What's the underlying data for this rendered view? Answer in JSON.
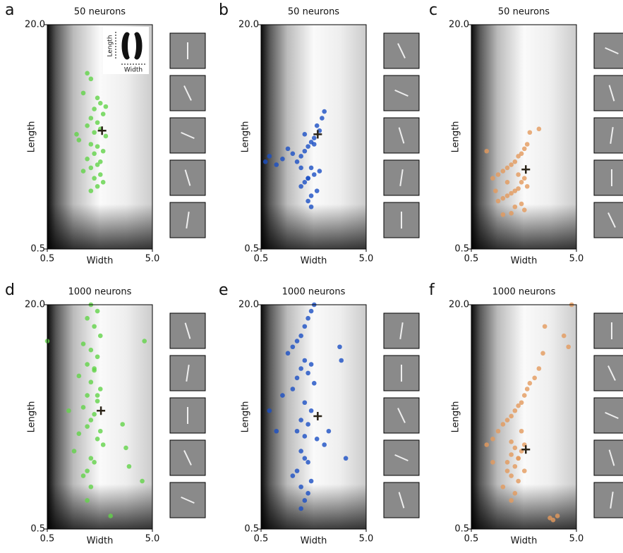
{
  "chart_data": [
    {
      "type": "scatter",
      "panel": "a",
      "title": "50 neurons",
      "x_label": "Width",
      "y_label": "Length",
      "inset_labels": [
        "Length",
        "Width"
      ],
      "log_x": true,
      "log_y": true,
      "xlim": [
        0.5,
        5.0
      ],
      "ylim": [
        0.5,
        20.0
      ],
      "xticks": [
        0.5,
        {
          "value": 5.0,
          "label": "5.0"
        }
      ],
      "yticks": [
        0.5,
        {
          "value": 20.0,
          "label": "20.0"
        }
      ],
      "series": [
        {
          "color": "#62d348",
          "x": [
            1.2,
            1.3,
            1.1,
            1.5,
            1.6,
            1.4,
            1.7,
            1.3,
            1.5,
            1.2,
            1.6,
            1.4,
            1.8,
            1.0,
            1.3,
            1.5,
            1.7,
            1.4,
            1.2,
            1.6,
            1.5,
            1.3,
            1.1,
            1.6,
            1.4,
            1.7,
            1.5,
            1.3,
            1.8,
            0.95
          ],
          "y": [
            9.0,
            8.2,
            6.5,
            6.0,
            5.5,
            5.0,
            4.6,
            4.3,
            4.0,
            3.8,
            3.6,
            3.4,
            3.2,
            3.0,
            2.8,
            2.7,
            2.5,
            2.4,
            2.2,
            2.1,
            2.0,
            1.9,
            1.8,
            1.7,
            1.6,
            1.5,
            1.4,
            1.3,
            5.2,
            3.3
          ]
        }
      ],
      "mean": {
        "x": 1.66,
        "y": 3.5
      }
    },
    {
      "type": "scatter",
      "panel": "b",
      "title": "50 neurons",
      "x_label": "Width",
      "y_label": "Length",
      "log_x": true,
      "log_y": true,
      "xlim": [
        0.5,
        5.0
      ],
      "ylim": [
        0.5,
        20.0
      ],
      "xticks": [
        0.5,
        {
          "value": 5.0,
          "label": "5.0"
        }
      ],
      "yticks": [
        0.5,
        {
          "value": 20.0,
          "label": "20.0"
        }
      ],
      "series": [
        {
          "color": "#1a4fc4",
          "x": [
            2.0,
            1.9,
            1.7,
            1.8,
            1.6,
            1.5,
            1.4,
            1.3,
            1.2,
            1.1,
            1.0,
            0.9,
            0.8,
            0.7,
            0.6,
            0.55,
            1.5,
            1.6,
            1.4,
            1.3,
            1.2,
            1.7,
            1.8,
            1.5,
            1.4,
            1.6,
            1.3,
            1.2,
            1.5,
            1.4
          ],
          "y": [
            4.8,
            4.3,
            3.8,
            3.5,
            3.1,
            2.9,
            2.7,
            2.5,
            2.3,
            2.1,
            2.4,
            2.6,
            2.2,
            2.0,
            2.3,
            2.1,
            1.9,
            1.7,
            1.6,
            1.5,
            1.4,
            1.3,
            1.8,
            1.2,
            1.1,
            2.8,
            3.3,
            1.9,
            1.0,
            1.6
          ]
        }
      ],
      "mean": {
        "x": 1.73,
        "y": 3.3
      }
    },
    {
      "type": "scatter",
      "panel": "c",
      "title": "50 neurons",
      "x_label": "Width",
      "y_label": "Length",
      "log_x": true,
      "log_y": true,
      "xlim": [
        0.5,
        5.0
      ],
      "ylim": [
        0.5,
        20.0
      ],
      "xticks": [
        0.5,
        {
          "value": 5.0,
          "label": "5.0"
        }
      ],
      "yticks": [
        0.5,
        {
          "value": 20.0,
          "label": "20.0"
        }
      ],
      "series": [
        {
          "color": "#e39a5c",
          "x": [
            2.2,
            1.8,
            1.7,
            1.6,
            0.7,
            1.5,
            1.4,
            1.3,
            1.2,
            1.1,
            1.0,
            0.9,
            0.8,
            1.6,
            1.5,
            1.7,
            1.4,
            1.3,
            1.2,
            1.1,
            1.0,
            0.9,
            1.5,
            1.3,
            1.6,
            1.2,
            1.4,
            1.1,
            0.85,
            1.0
          ],
          "y": [
            3.6,
            3.4,
            2.8,
            2.6,
            2.5,
            2.4,
            2.3,
            2.1,
            2.0,
            1.9,
            1.8,
            1.7,
            1.6,
            1.6,
            1.5,
            1.4,
            1.35,
            1.3,
            1.25,
            1.2,
            1.15,
            1.1,
            1.05,
            1.0,
            0.95,
            0.9,
            1.7,
            1.5,
            1.3,
            0.88
          ]
        }
      ],
      "mean": {
        "x": 1.65,
        "y": 1.85
      }
    },
    {
      "type": "scatter",
      "panel": "d",
      "title": "1000 neurons",
      "x_label": "Width",
      "y_label": "Length",
      "log_x": true,
      "log_y": true,
      "xlim": [
        0.5,
        5.0
      ],
      "ylim": [
        0.5,
        20.0
      ],
      "xticks": [
        0.5,
        {
          "value": 5.0,
          "label": "5.0"
        }
      ],
      "yticks": [
        0.5,
        {
          "value": 20.0,
          "label": "20.0"
        }
      ],
      "series": [
        {
          "color": "#62d348",
          "x": [
            0.5,
            4.2,
            4.0,
            2.0,
            1.3,
            1.5,
            1.2,
            1.4,
            1.6,
            1.1,
            1.3,
            1.5,
            1.2,
            1.4,
            1.0,
            1.3,
            1.6,
            1.2,
            1.5,
            1.1,
            1.4,
            1.3,
            1.2,
            1.0,
            1.5,
            1.7,
            0.9,
            1.3,
            1.4,
            1.2,
            2.6,
            2.8,
            3.0,
            0.8,
            1.1,
            1.6,
            1.3,
            1.2,
            1.5,
            1.4
          ],
          "y": [
            11.0,
            11.0,
            1.1,
            0.62,
            20,
            18,
            16,
            14,
            12,
            10.5,
            9.5,
            8.5,
            7.5,
            6.8,
            6.2,
            5.6,
            5.0,
            4.5,
            4.1,
            3.7,
            3.3,
            3.0,
            2.7,
            2.4,
            2.2,
            2.0,
            1.8,
            1.6,
            1.5,
            1.3,
            2.8,
            1.9,
            1.4,
            3.5,
            1.2,
            2.5,
            1.0,
            0.8,
            4.5,
            7.0
          ]
        }
      ],
      "mean": {
        "x": 1.62,
        "y": 3.5
      }
    },
    {
      "type": "scatter",
      "panel": "e",
      "title": "1000 neurons",
      "x_label": "Width",
      "y_label": "Length",
      "log_x": true,
      "log_y": true,
      "xlim": [
        0.5,
        5.0
      ],
      "ylim": [
        0.5,
        20.0
      ],
      "xticks": [
        0.5,
        {
          "value": 5.0,
          "label": "5.0"
        }
      ],
      "yticks": [
        0.5,
        {
          "value": 20.0,
          "label": "20.0"
        }
      ],
      "series": [
        {
          "color": "#1a4fc4",
          "x": [
            2.9,
            2.8,
            1.6,
            1.5,
            1.4,
            1.3,
            1.2,
            1.1,
            1.0,
            0.9,
            1.3,
            1.5,
            1.2,
            1.4,
            1.1,
            1.6,
            1.0,
            0.8,
            0.6,
            1.3,
            1.5,
            1.2,
            1.4,
            1.1,
            1.3,
            1.7,
            2.2,
            2.0,
            1.2,
            1.3,
            1.4,
            1.1,
            1.0,
            1.5,
            1.2,
            3.2,
            0.7,
            1.4,
            1.3,
            1.2
          ],
          "y": [
            8,
            10,
            20,
            18,
            16,
            14,
            12,
            11,
            10,
            9,
            8,
            7.5,
            7,
            6.5,
            6,
            5.5,
            5,
            4.5,
            3.5,
            4,
            3.5,
            3,
            2.8,
            2.5,
            2.3,
            2.2,
            2.5,
            2.0,
            1.8,
            1.6,
            1.5,
            1.3,
            1.2,
            1.1,
            1.0,
            1.6,
            2.5,
            0.9,
            0.8,
            0.7
          ]
        }
      ],
      "mean": {
        "x": 1.73,
        "y": 3.2
      }
    },
    {
      "type": "scatter",
      "panel": "f",
      "title": "1000 neurons",
      "x_label": "Width",
      "y_label": "Length",
      "log_x": true,
      "log_y": true,
      "xlim": [
        0.5,
        5.0
      ],
      "ylim": [
        0.5,
        20.0
      ],
      "xticks": [
        0.5,
        {
          "value": 5.0,
          "label": "5.0"
        }
      ],
      "yticks": [
        0.5,
        {
          "value": 20.0,
          "label": "20.0"
        }
      ],
      "series": [
        {
          "color": "#e39a5c",
          "x": [
            4.5,
            4.2,
            3.8,
            2.5,
            2.4,
            2.2,
            2.0,
            1.8,
            1.7,
            1.6,
            1.5,
            1.4,
            1.3,
            1.2,
            1.1,
            1.0,
            0.9,
            0.8,
            0.7,
            1.3,
            1.5,
            1.2,
            1.4,
            1.1,
            1.3,
            1.6,
            1.2,
            1.4,
            1.0,
            2.8,
            3.0,
            3.3,
            0.8,
            1.5,
            1.2,
            1.3,
            1.1,
            1.4,
            1.6,
            1.2
          ],
          "y": [
            20,
            10,
            12,
            14,
            9,
            7,
            6,
            5.5,
            5,
            4.5,
            4,
            3.8,
            3.5,
            3.2,
            3,
            2.8,
            2.5,
            2.2,
            2,
            1.9,
            1.8,
            1.7,
            1.6,
            1.5,
            1.4,
            1.3,
            1.2,
            1.1,
            1.0,
            0.6,
            0.58,
            0.62,
            1.5,
            2.5,
            2.1,
            0.9,
            1.3,
            1.6,
            2.0,
            0.8
          ]
        }
      ],
      "mean": {
        "x": 1.65,
        "y": 1.85
      }
    }
  ]
}
